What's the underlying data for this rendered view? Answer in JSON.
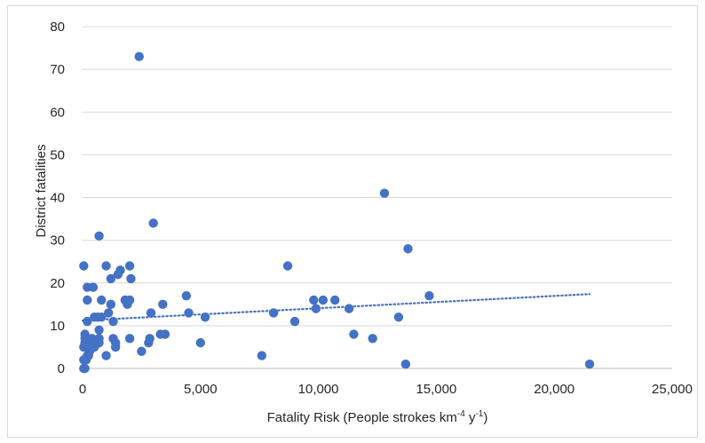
{
  "chart_data": {
    "type": "scatter",
    "xlabel_main": "Fatality Risk  (People strokes km",
    "xlabel_sup1": "-4",
    "xlabel_mid": " y",
    "xlabel_sup2": "-1",
    "xlabel_end": ")",
    "ylabel": "District fatalities",
    "xlim": [
      0,
      25000
    ],
    "ylim": [
      0,
      80
    ],
    "xticks": [
      0,
      5000,
      10000,
      15000,
      20000,
      25000
    ],
    "xtick_labels": [
      "0",
      "5,000",
      "10,000",
      "15,000",
      "20,000",
      "25,000"
    ],
    "yticks": [
      0,
      10,
      20,
      30,
      40,
      50,
      60,
      70,
      80
    ],
    "ytick_labels": [
      "0",
      "10",
      "20",
      "30",
      "40",
      "50",
      "60",
      "70",
      "80"
    ],
    "grid": "horizontal",
    "marker_color": "#4472c4",
    "trendline": {
      "type": "linear",
      "x_start": 0,
      "y_start": 11.2,
      "x_end": 21500,
      "y_end": 17.4,
      "color": "#4472c4",
      "style": "dotted"
    },
    "points": [
      [
        2400,
        73
      ],
      [
        12800,
        41
      ],
      [
        3000,
        34
      ],
      [
        700,
        31
      ],
      [
        13800,
        28
      ],
      [
        50,
        24
      ],
      [
        1000,
        24
      ],
      [
        2000,
        24
      ],
      [
        8700,
        24
      ],
      [
        1600,
        23
      ],
      [
        1500,
        22
      ],
      [
        1200,
        21
      ],
      [
        2050,
        21
      ],
      [
        200,
        19
      ],
      [
        450,
        19
      ],
      [
        14700,
        17
      ],
      [
        4400,
        17
      ],
      [
        1800,
        16
      ],
      [
        200,
        16
      ],
      [
        800,
        16
      ],
      [
        2000,
        16
      ],
      [
        9800,
        16
      ],
      [
        10200,
        16
      ],
      [
        10700,
        16
      ],
      [
        1200,
        15
      ],
      [
        3400,
        15
      ],
      [
        1900,
        15
      ],
      [
        11300,
        14
      ],
      [
        9900,
        14
      ],
      [
        2900,
        13
      ],
      [
        1100,
        13
      ],
      [
        4500,
        13
      ],
      [
        8100,
        13
      ],
      [
        13400,
        12
      ],
      [
        5200,
        12
      ],
      [
        800,
        12
      ],
      [
        500,
        12
      ],
      [
        650,
        12
      ],
      [
        1300,
        11
      ],
      [
        9000,
        11
      ],
      [
        200,
        11
      ],
      [
        700,
        9
      ],
      [
        100,
        8
      ],
      [
        3300,
        8
      ],
      [
        3500,
        8
      ],
      [
        11500,
        8
      ],
      [
        100,
        7
      ],
      [
        2000,
        7
      ],
      [
        12300,
        7
      ],
      [
        700,
        7
      ],
      [
        1300,
        7
      ],
      [
        2850,
        7
      ],
      [
        400,
        7
      ],
      [
        5000,
        6
      ],
      [
        2800,
        6
      ],
      [
        300,
        6
      ],
      [
        1400,
        6
      ],
      [
        100,
        6
      ],
      [
        700,
        6
      ],
      [
        200,
        5
      ],
      [
        500,
        5
      ],
      [
        50,
        5
      ],
      [
        1400,
        5
      ],
      [
        250,
        5
      ],
      [
        2500,
        4
      ],
      [
        300,
        4
      ],
      [
        7600,
        3
      ],
      [
        1000,
        3
      ],
      [
        200,
        3
      ],
      [
        250,
        3
      ],
      [
        50,
        2
      ],
      [
        100,
        2
      ],
      [
        150,
        2
      ],
      [
        13700,
        1
      ],
      [
        21500,
        1
      ],
      [
        50,
        0
      ],
      [
        100,
        0
      ]
    ]
  }
}
